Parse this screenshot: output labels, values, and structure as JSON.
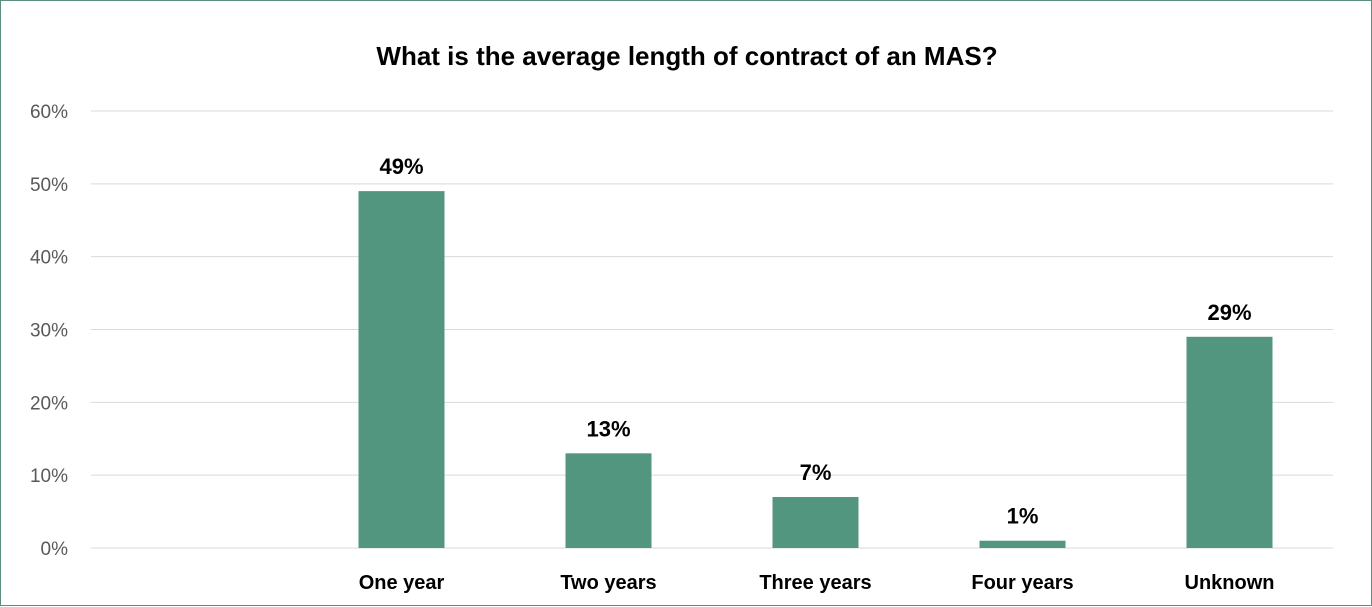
{
  "chart_data": {
    "type": "bar",
    "title": "What is the average length of contract of an MAS?",
    "categories": [
      "One year",
      "Two years",
      "Three years",
      "Four years",
      "Unknown"
    ],
    "values": [
      49,
      13,
      7,
      1,
      29
    ],
    "data_labels": [
      "49%",
      "13%",
      "7%",
      "1%",
      "29%"
    ],
    "ylim": [
      0,
      60
    ],
    "yticks": [
      0,
      10,
      20,
      30,
      40,
      50,
      60
    ],
    "ytick_labels": [
      "0%",
      "10%",
      "20%",
      "30%",
      "40%",
      "50%",
      "60%"
    ],
    "xlabel": "",
    "ylabel": "",
    "grid": true,
    "legend": "none",
    "colors": {
      "bar": "#52967f",
      "grid": "#d9d9d9",
      "frame": "#5a8f7e"
    }
  }
}
